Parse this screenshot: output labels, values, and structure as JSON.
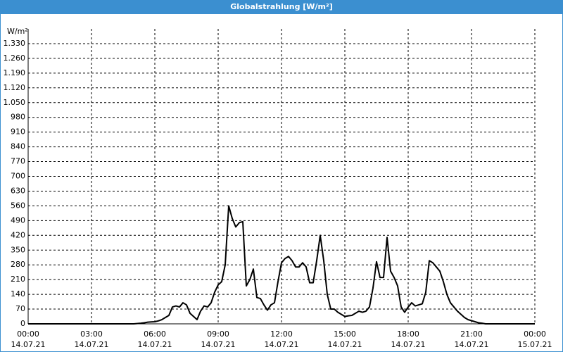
{
  "chart_data": {
    "type": "line",
    "title": "Globalstrahlung [W/m²]",
    "ylabel": "W/m²",
    "x": [
      0,
      300,
      320,
      330,
      340,
      350,
      360,
      370,
      380,
      390,
      400,
      410,
      420,
      430,
      440,
      450,
      460,
      470,
      480,
      490,
      500,
      510,
      520,
      530,
      540,
      550,
      560,
      570,
      580,
      590,
      600,
      610,
      620,
      630,
      640,
      650,
      660,
      670,
      680,
      690,
      700,
      710,
      720,
      730,
      740,
      750,
      760,
      770,
      780,
      790,
      800,
      810,
      820,
      830,
      840,
      850,
      860,
      870,
      880,
      890,
      900,
      910,
      920,
      930,
      940,
      950,
      960,
      970,
      980,
      990,
      1000,
      1010,
      1020,
      1030,
      1040,
      1050,
      1060,
      1070,
      1080,
      1090,
      1100,
      1110,
      1120,
      1130,
      1140,
      1150,
      1160,
      1170,
      1180,
      1190,
      1200,
      1210,
      1220,
      1230,
      1240,
      1250,
      1260,
      1270,
      1280,
      1290,
      1300,
      1440
    ],
    "series": [
      {
        "name": "Globalstrahlung",
        "color": "#000000",
        "values": [
          0,
          0,
          3,
          5,
          8,
          9,
          10,
          14,
          20,
          30,
          40,
          80,
          85,
          80,
          100,
          90,
          50,
          35,
          20,
          60,
          85,
          80,
          100,
          150,
          185,
          200,
          280,
          560,
          500,
          460,
          480,
          485,
          180,
          210,
          260,
          125,
          120,
          90,
          65,
          90,
          100,
          200,
          290,
          310,
          320,
          300,
          270,
          270,
          290,
          270,
          195,
          195,
          300,
          420,
          300,
          140,
          70,
          70,
          55,
          45,
          35,
          38,
          40,
          50,
          60,
          55,
          60,
          80,
          170,
          295,
          220,
          220,
          410,
          250,
          220,
          180,
          80,
          55,
          80,
          100,
          85,
          90,
          95,
          150,
          300,
          290,
          270,
          250,
          200,
          140,
          100,
          80,
          60,
          45,
          30,
          20,
          15,
          10,
          5,
          3,
          0,
          0
        ]
      }
    ],
    "xlim": [
      0,
      1440
    ],
    "xticks": [
      {
        "value": 0,
        "label": "00:00",
        "date": "14.07.21"
      },
      {
        "value": 180,
        "label": "03:00",
        "date": "14.07.21"
      },
      {
        "value": 360,
        "label": "06:00",
        "date": "14.07.21"
      },
      {
        "value": 540,
        "label": "09:00",
        "date": "14.07.21"
      },
      {
        "value": 720,
        "label": "12:00",
        "date": "14.07.21"
      },
      {
        "value": 900,
        "label": "15:00",
        "date": "14.07.21"
      },
      {
        "value": 1080,
        "label": "18:00",
        "date": "14.07.21"
      },
      {
        "value": 1260,
        "label": "21:00",
        "date": "14.07.21"
      },
      {
        "value": 1440,
        "label": "00:00",
        "date": "15.07.21"
      }
    ],
    "ylim": [
      0,
      1400
    ],
    "yticks": [
      0,
      70,
      140,
      210,
      280,
      350,
      420,
      490,
      560,
      630,
      700,
      770,
      840,
      910,
      980,
      {
        "value": 1050,
        "label": "1.050"
      },
      {
        "value": 1120,
        "label": "1.120"
      },
      {
        "value": 1190,
        "label": "1.190"
      },
      {
        "value": 1260,
        "label": "1.260"
      },
      {
        "value": 1330,
        "label": "1.330"
      }
    ],
    "grid": true
  }
}
